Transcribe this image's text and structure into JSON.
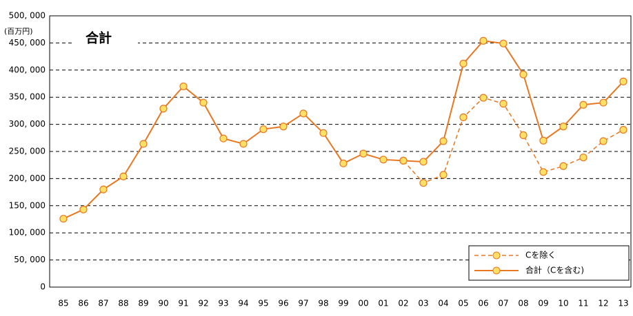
{
  "chart_data": {
    "type": "line",
    "title": "合計",
    "unit_label": "(百万円)",
    "categories": [
      "85",
      "86",
      "87",
      "88",
      "89",
      "90",
      "91",
      "92",
      "93",
      "94",
      "95",
      "96",
      "97",
      "98",
      "99",
      "00",
      "01",
      "02",
      "03",
      "04",
      "05",
      "06",
      "07",
      "08",
      "09",
      "10",
      "11",
      "12",
      "13"
    ],
    "series": [
      {
        "name": "Cを除く",
        "color": "#e87722",
        "dashed": true,
        "values": [
          null,
          null,
          null,
          null,
          null,
          null,
          null,
          null,
          null,
          null,
          null,
          null,
          null,
          null,
          null,
          null,
          null,
          233000,
          192000,
          207000,
          313000,
          349000,
          338000,
          280000,
          212000,
          223000,
          239000,
          269000,
          290000
        ]
      },
      {
        "name": "合計（Cを含む)",
        "color": "#e87722",
        "dashed": false,
        "values": [
          126000,
          143000,
          180000,
          204000,
          264000,
          329000,
          370000,
          340000,
          274000,
          264000,
          291000,
          296000,
          320000,
          284000,
          228000,
          246000,
          235000,
          233000,
          231000,
          269000,
          412000,
          454000,
          449000,
          392000,
          270000,
          296000,
          336000,
          340000,
          379000
        ]
      }
    ],
    "marker_fill": "#ffe066",
    "ylim": [
      0,
      500000
    ],
    "yticks": [
      0,
      {
        "value": 50000,
        "label": "50, 000"
      },
      {
        "value": 100000,
        "label": "100, 000"
      },
      {
        "value": 150000,
        "label": "150, 000"
      },
      {
        "value": 200000,
        "label": "200, 000"
      },
      {
        "value": 250000,
        "label": "250, 000"
      },
      {
        "value": 300000,
        "label": "300, 000"
      },
      {
        "value": 350000,
        "label": "350, 000"
      },
      {
        "value": 400000,
        "label": "400, 000"
      },
      {
        "value": 450000,
        "label": "450, 000"
      },
      {
        "value": 500000,
        "label": "500, 000"
      }
    ],
    "grid": true,
    "legend": "bottom-right"
  }
}
